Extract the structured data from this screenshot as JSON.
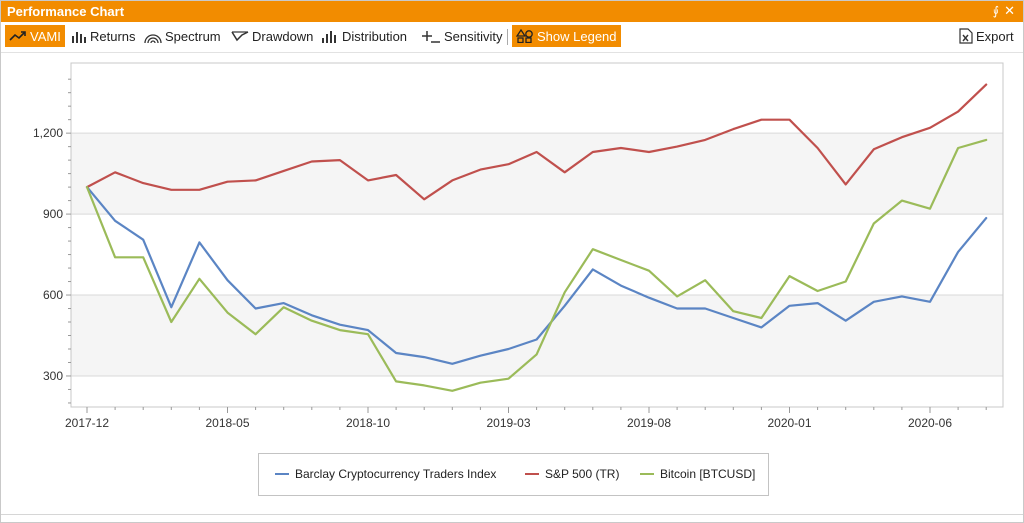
{
  "window": {
    "title": "Performance Chart",
    "pin_glyph": "⨚",
    "close_glyph": "✕"
  },
  "toolbar": {
    "tools": [
      {
        "label": "VAMI",
        "icon": "trend-up-icon",
        "active": true
      },
      {
        "label": "Returns",
        "icon": "bar-chart-icon",
        "active": false
      },
      {
        "label": "Spectrum",
        "icon": "spectrum-arc-icon",
        "active": false
      },
      {
        "label": "Drawdown",
        "icon": "drawdown-icon",
        "active": false
      },
      {
        "label": "Distribution",
        "icon": "distribution-icon",
        "active": false
      },
      {
        "label": "Sensitivity",
        "icon": "sensitivity-icon",
        "active": false
      },
      {
        "label": "Show Legend",
        "icon": "legend-shapes-icon",
        "active": true
      }
    ],
    "export_label": "Export",
    "export_icon": "excel-export-icon",
    "accent_color": "#f28c00"
  },
  "chart_data": {
    "type": "line",
    "title": "",
    "xlabel": "",
    "ylabel": "",
    "x": [
      "2017-12",
      "2018-01",
      "2018-02",
      "2018-03",
      "2018-04",
      "2018-05",
      "2018-06",
      "2018-07",
      "2018-08",
      "2018-09",
      "2018-10",
      "2018-11",
      "2018-12",
      "2019-01",
      "2019-02",
      "2019-03",
      "2019-04",
      "2019-05",
      "2019-06",
      "2019-07",
      "2019-08",
      "2019-09",
      "2019-10",
      "2019-11",
      "2019-12",
      "2020-01",
      "2020-02",
      "2020-03",
      "2020-04",
      "2020-05",
      "2020-06",
      "2020-07",
      "2020-08"
    ],
    "x_ticks": [
      "2017-12",
      "2018-05",
      "2018-10",
      "2019-03",
      "2019-08",
      "2020-01",
      "2020-06"
    ],
    "y_ticks": [
      300,
      600,
      900,
      1200
    ],
    "y_tick_labels": [
      "300",
      "600",
      "900",
      "1,200"
    ],
    "ylim": [
      185,
      1460
    ],
    "grid": "horizontal",
    "banded_background": true,
    "legend_position": "bottom-center",
    "series": [
      {
        "name": "Barclay Cryptocurrency Traders Index",
        "color": "#5b85c4",
        "values": [
          1000,
          875,
          805,
          555,
          795,
          655,
          550,
          570,
          525,
          490,
          470,
          385,
          370,
          345,
          375,
          400,
          435,
          560,
          695,
          635,
          590,
          550,
          550,
          515,
          480,
          560,
          570,
          505,
          575,
          595,
          575,
          760,
          885
        ]
      },
      {
        "name": "S&P 500 (TR)",
        "color": "#c0504d",
        "values": [
          1000,
          1055,
          1015,
          990,
          990,
          1020,
          1025,
          1060,
          1095,
          1100,
          1025,
          1045,
          955,
          1025,
          1065,
          1085,
          1130,
          1055,
          1130,
          1145,
          1130,
          1150,
          1175,
          1215,
          1250,
          1250,
          1145,
          1010,
          1140,
          1185,
          1220,
          1280,
          1380
        ]
      },
      {
        "name": "Bitcoin [BTCUSD]",
        "color": "#9bbb59",
        "values": [
          1000,
          740,
          740,
          500,
          660,
          535,
          455,
          555,
          505,
          470,
          455,
          280,
          265,
          245,
          275,
          290,
          380,
          610,
          770,
          730,
          690,
          595,
          655,
          540,
          515,
          670,
          615,
          650,
          865,
          950,
          920,
          1145,
          1175
        ]
      }
    ]
  }
}
